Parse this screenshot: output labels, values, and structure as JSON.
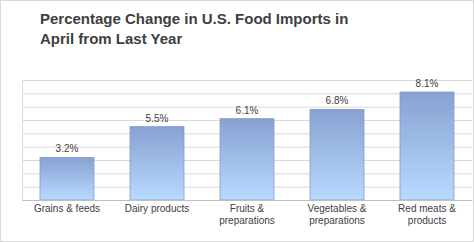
{
  "chart_data": {
    "type": "bar",
    "title": "Percentage Change in U.S. Food Imports in April from Last Year",
    "categories": [
      "Grains & feeds",
      "Dairy products",
      "Fruits & preparations",
      "Vegetables & preparations",
      "Red meats & products"
    ],
    "values": [
      3.2,
      5.5,
      6.1,
      6.8,
      8.1
    ],
    "value_labels": [
      "3.2%",
      "5.5%",
      "6.1%",
      "6.8%",
      "8.1%"
    ],
    "data_labels": true,
    "color": "#8faadc",
    "ylim": [
      0,
      9
    ],
    "yticks": [
      0,
      1,
      2,
      3,
      4,
      5,
      6,
      7,
      8,
      9
    ],
    "grid": true,
    "tick_labels": "x"
  }
}
